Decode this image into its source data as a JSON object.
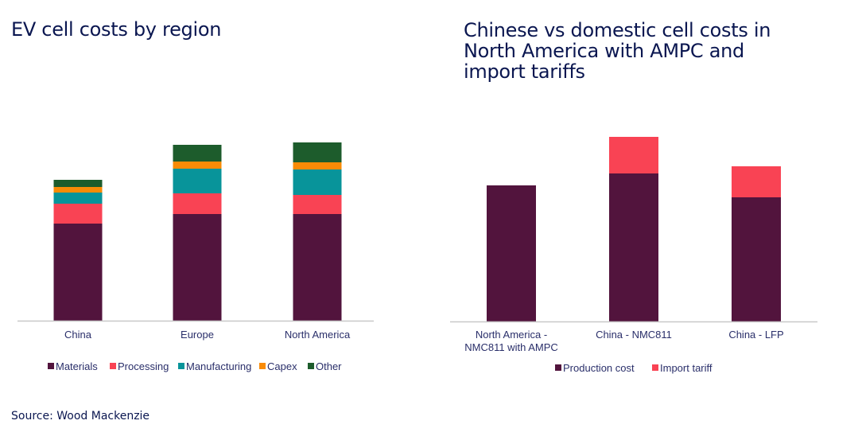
{
  "source": "Source: Wood Mackenzie",
  "chart_data": [
    {
      "type": "bar",
      "stacked": true,
      "title": "EV cell costs by region",
      "categories": [
        "China",
        "Europe",
        "North America"
      ],
      "series": [
        {
          "name": "Materials",
          "color": "#52143d",
          "values": [
            122,
            134,
            134
          ]
        },
        {
          "name": "Processing",
          "color": "#f94354",
          "values": [
            25,
            26,
            24
          ]
        },
        {
          "name": "Manufacturing",
          "color": "#08949a",
          "values": [
            14,
            31,
            32
          ]
        },
        {
          "name": "Capex",
          "color": "#f98b06",
          "values": [
            7,
            9,
            9
          ]
        },
        {
          "name": "Other",
          "color": "#1d5c2c",
          "values": [
            9,
            21,
            25
          ]
        }
      ],
      "ylim": [
        0,
        240
      ],
      "grid": false,
      "y_axis_shown": false,
      "legend": "bottom"
    },
    {
      "type": "bar",
      "stacked": true,
      "title": "Chinese vs domestic cell costs in North America with AMPC and import tariffs",
      "categories": [
        [
          "North America -",
          "NMC811 with AMPC"
        ],
        [
          "China - NMC811"
        ],
        [
          "China - LFP"
        ]
      ],
      "series": [
        {
          "name": "Production cost",
          "color": "#52143d",
          "values": [
            171,
            186,
            156
          ]
        },
        {
          "name": "Import tariff",
          "color": "#f94354",
          "values": [
            0,
            46,
            39
          ]
        }
      ],
      "ylim": [
        0,
        240
      ],
      "grid": false,
      "y_axis_shown": false,
      "legend": "bottom"
    }
  ]
}
